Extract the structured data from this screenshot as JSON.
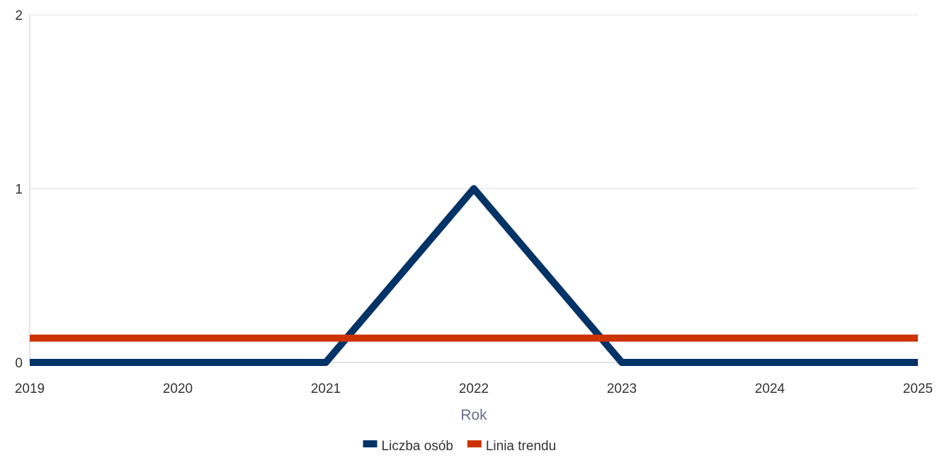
{
  "chart_data": {
    "type": "line",
    "x": [
      2019,
      2020,
      2021,
      2022,
      2023,
      2024,
      2025
    ],
    "x_tick_labels": [
      "2019",
      "2020",
      "2021",
      "2022",
      "2023",
      "2024",
      "2025"
    ],
    "y_tick_labels": [
      "0",
      "1",
      "2"
    ],
    "y_ticks": [
      0,
      1,
      2
    ],
    "ylim": [
      0,
      2
    ],
    "xlim": [
      2019,
      2025
    ],
    "xlabel": "Rok",
    "ylabel": "",
    "grid": "horizontal",
    "legend_position": "bottom-center",
    "series": [
      {
        "name": "Liczba osób",
        "color": "#003366",
        "points": [
          [
            2019,
            0
          ],
          [
            2021,
            0
          ],
          [
            2022,
            1
          ],
          [
            2023,
            0
          ],
          [
            2025,
            0
          ]
        ]
      },
      {
        "name": "Linia trendu",
        "color": "#cc3300",
        "points": [
          [
            2019,
            0.14
          ],
          [
            2025,
            0.14
          ]
        ]
      }
    ]
  }
}
